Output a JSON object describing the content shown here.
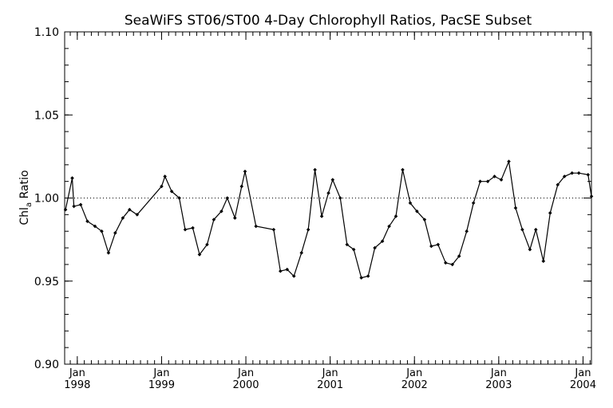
{
  "chart_data": {
    "type": "line",
    "title": "SeaWiFS ST06/ST00 4-Day Chlorophyll Ratios, PacSE Subset",
    "ylabel_main": "Chl",
    "ylabel_sub": "a",
    "ylabel_rest": " Ratio",
    "xlabel": "",
    "ylim": [
      0.9,
      1.1
    ],
    "yticks": [
      {
        "value": 0.9,
        "label": "0.90"
      },
      {
        "value": 0.95,
        "label": "0.95"
      },
      {
        "value": 1.0,
        "label": "1.00"
      },
      {
        "value": 1.05,
        "label": "1.05"
      },
      {
        "value": 1.1,
        "label": "1.10"
      }
    ],
    "xlim": [
      1997.85,
      2004.1
    ],
    "xticks": [
      {
        "value": 1998.0,
        "month": "Jan",
        "year": "1998"
      },
      {
        "value": 1999.0,
        "month": "Jan",
        "year": "1999"
      },
      {
        "value": 2000.0,
        "month": "Jan",
        "year": "2000"
      },
      {
        "value": 2001.0,
        "month": "Jan",
        "year": "2001"
      },
      {
        "value": 2002.0,
        "month": "Jan",
        "year": "2002"
      },
      {
        "value": 2003.0,
        "month": "Jan",
        "year": "2003"
      },
      {
        "value": 2004.0,
        "month": "Jan",
        "year": "2004"
      }
    ],
    "reference_line": 1.0,
    "series": [
      {
        "x": [
          1997.86,
          1997.94,
          1997.96,
          1998.04,
          1998.12,
          1998.21,
          1998.29,
          1998.37,
          1998.45,
          1998.54,
          1998.62,
          1998.71,
          1999.0,
          1999.04,
          1999.12,
          1999.21,
          1999.28,
          1999.37,
          1999.45,
          1999.54,
          1999.62,
          1999.71,
          1999.78,
          1999.87,
          1999.95,
          1999.99,
          2000.12,
          2000.33,
          2000.41,
          2000.49,
          2000.57,
          2000.66,
          2000.74,
          2000.82,
          2000.9,
          2000.98,
          2001.03,
          2001.12,
          2001.2,
          2001.28,
          2001.37,
          2001.45,
          2001.53,
          2001.62,
          2001.7,
          2001.78,
          2001.86,
          2001.95,
          2002.03,
          2002.12,
          2002.2,
          2002.28,
          2002.37,
          2002.45,
          2002.53,
          2002.62,
          2002.7,
          2002.78,
          2002.87,
          2002.95,
          2003.03,
          2003.12,
          2003.2,
          2003.28,
          2003.37,
          2003.44,
          2003.53,
          2003.61,
          2003.7,
          2003.78,
          2003.87,
          2003.95,
          2004.06,
          2004.1
        ],
        "y": [
          0.993,
          1.012,
          0.995,
          0.996,
          0.986,
          0.983,
          0.98,
          0.967,
          0.979,
          0.988,
          0.993,
          0.99,
          1.007,
          1.013,
          1.004,
          1.0,
          0.981,
          0.982,
          0.966,
          0.972,
          0.987,
          0.992,
          1.0,
          0.988,
          1.007,
          1.016,
          0.983,
          0.981,
          0.956,
          0.957,
          0.953,
          0.967,
          0.981,
          1.017,
          0.989,
          1.003,
          1.011,
          1.0,
          0.972,
          0.969,
          0.952,
          0.953,
          0.97,
          0.974,
          0.983,
          0.989,
          1.017,
          0.997,
          0.992,
          0.987,
          0.971,
          0.972,
          0.961,
          0.96,
          0.965,
          0.98,
          0.997,
          1.01,
          1.01,
          1.013,
          1.011,
          1.022,
          0.994,
          0.981,
          0.969,
          0.981,
          0.962,
          0.991,
          1.008,
          1.013,
          1.015,
          1.015,
          1.014,
          1.001
        ]
      }
    ]
  }
}
